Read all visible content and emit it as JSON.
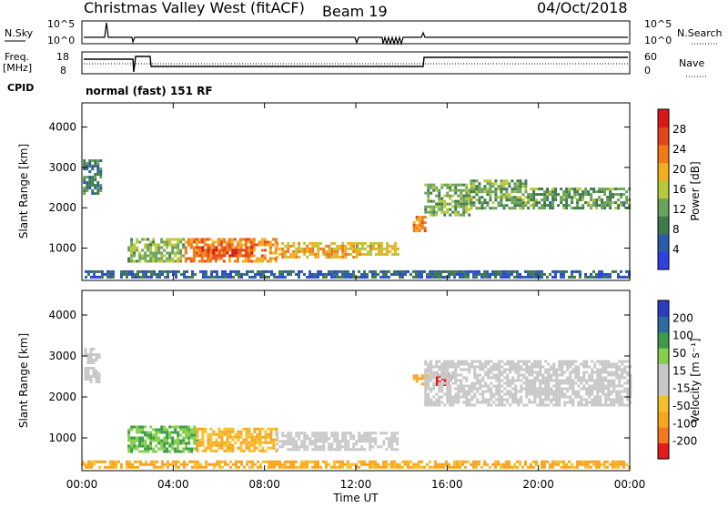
{
  "header": {
    "title": "Christmas Valley West (fitACF)",
    "beam": "Beam 19",
    "date": "04/Oct/2018"
  },
  "noise_panel": {
    "left_label": "N.Sky",
    "right_label": "N.Search",
    "left_ticks": [
      "10^5",
      "10^0"
    ],
    "right_ticks": [
      "10^5",
      "10^0"
    ]
  },
  "freq_panel": {
    "left_label_1": "Freq.",
    "left_label_2": "[MHz]",
    "right_label": "Nave",
    "left_ticks": [
      "18",
      "8"
    ],
    "right_ticks": [
      "60",
      "0"
    ]
  },
  "cpid": {
    "label": "CPID",
    "value": "normal (fast) 151 RF"
  },
  "colors": {
    "power_scale": [
      "#2f3fe0",
      "#2a5ca8",
      "#3f7a4c",
      "#6aa25a",
      "#b7c83a",
      "#f2ae1e",
      "#f07a18",
      "#e4461a",
      "#d81818"
    ],
    "velocity_scale": [
      "#e41a1c",
      "#f4781e",
      "#f8a51e",
      "#f5c02a",
      "#c8c8c8",
      "#c8c8c8",
      "#86cf4a",
      "#3c9a4a",
      "#2d6ca0",
      "#2c3cc0"
    ]
  },
  "chart_data": [
    {
      "type": "heatmap",
      "title": "",
      "xlabel": "Time UT",
      "ylabel": "Slant Range [km]",
      "x_ticks": [
        "00:00",
        "04:00",
        "08:00",
        "12:00",
        "16:00",
        "20:00",
        "00:00"
      ],
      "xlim_hours": [
        0,
        24
      ],
      "y_ticks": [
        "1000",
        "2000",
        "3000",
        "4000"
      ],
      "ylim": [
        200,
        4600
      ],
      "colorbar": {
        "label": "Power [dB]",
        "ticks": [
          "4",
          "8",
          "12",
          "16",
          "20",
          "24",
          "28"
        ],
        "range": [
          0,
          32
        ]
      }
    },
    {
      "type": "heatmap",
      "title": "",
      "xlabel": "Time UT",
      "ylabel": "Slant Range [km]",
      "x_ticks": [
        "00:00",
        "04:00",
        "08:00",
        "12:00",
        "16:00",
        "20:00",
        "00:00"
      ],
      "xlim_hours": [
        0,
        24
      ],
      "y_ticks": [
        "1000",
        "2000",
        "3000",
        "4000"
      ],
      "ylim": [
        200,
        4600
      ],
      "colorbar": {
        "label": "Velocity [m s⁻¹]",
        "ticks": [
          "200",
          "100",
          "50",
          "15",
          "-15",
          "-50",
          "-100",
          "-200"
        ]
      }
    }
  ],
  "echo_regions": {
    "power": [
      {
        "t0": 0.05,
        "t1": 0.85,
        "r0": 2350,
        "r1": 3200,
        "level": 9
      },
      {
        "t0": 2.0,
        "t1": 4.5,
        "r0": 650,
        "r1": 1250,
        "level": 14
      },
      {
        "t0": 4.5,
        "t1": 8.5,
        "r0": 650,
        "r1": 1250,
        "level": 22
      },
      {
        "t0": 5.0,
        "t1": 7.5,
        "r0": 800,
        "r1": 1050,
        "level": 27
      },
      {
        "t0": 8.5,
        "t1": 12.0,
        "r0": 750,
        "r1": 1150,
        "level": 20
      },
      {
        "t0": 12.0,
        "t1": 13.8,
        "r0": 850,
        "r1": 1150,
        "level": 18
      },
      {
        "t0": 14.5,
        "t1": 15.0,
        "r0": 1400,
        "r1": 1800,
        "level": 22
      },
      {
        "t0": 15.0,
        "t1": 17.0,
        "r0": 1800,
        "r1": 2600,
        "level": 13
      },
      {
        "t0": 17.0,
        "t1": 19.5,
        "r0": 2000,
        "r1": 2700,
        "level": 12
      },
      {
        "t0": 19.5,
        "t1": 24.0,
        "r0": 2000,
        "r1": 2500,
        "level": 11
      },
      {
        "t0": 0.0,
        "t1": 24.0,
        "r0": 250,
        "r1": 450,
        "level": 6
      }
    ],
    "velocity": [
      {
        "t0": 0.1,
        "t1": 0.8,
        "r0": 2350,
        "r1": 3200,
        "vel": 0
      },
      {
        "t0": 2.0,
        "t1": 5.0,
        "r0": 650,
        "r1": 1300,
        "vel": 30
      },
      {
        "t0": 5.0,
        "t1": 8.5,
        "r0": 650,
        "r1": 1250,
        "vel": -30
      },
      {
        "t0": 8.5,
        "t1": 13.8,
        "r0": 700,
        "r1": 1150,
        "vel": 0
      },
      {
        "t0": 14.5,
        "t1": 15.1,
        "r0": 2300,
        "r1": 2550,
        "vel": -60
      },
      {
        "t0": 15.5,
        "t1": 16.2,
        "r0": 2300,
        "r1": 2600,
        "vel": -250
      },
      {
        "t0": 15.0,
        "t1": 24.0,
        "r0": 1800,
        "r1": 2900,
        "vel": 0
      },
      {
        "t0": 0.0,
        "t1": 24.0,
        "r0": 250,
        "r1": 450,
        "vel": -40
      }
    ]
  }
}
